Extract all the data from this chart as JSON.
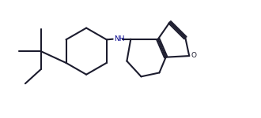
{
  "background_color": "#ffffff",
  "line_color": "#1c1c2e",
  "nh_color": "#00008B",
  "line_width": 1.5,
  "fig_width": 3.3,
  "fig_height": 1.5,
  "dpi": 100,
  "xlim": [
    0,
    10
  ],
  "ylim": [
    0,
    4.5
  ]
}
